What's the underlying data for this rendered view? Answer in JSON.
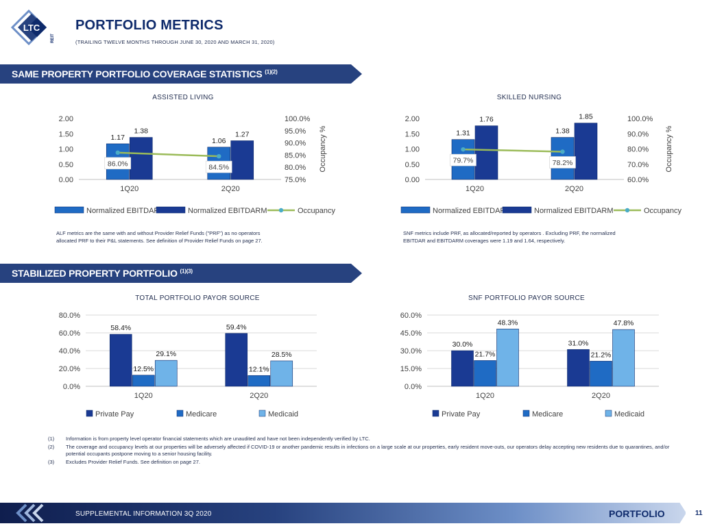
{
  "header": {
    "title": "PORTFOLIO METRICS",
    "subtitle": "(TRAILING TWELVE MONTHS THROUGH JUNE 30, 2020 AND MARCH 31, 2020)",
    "logo_text": "LTC",
    "logo_subtext": "REIT"
  },
  "banners": {
    "coverage": {
      "label": "SAME PROPERTY PORTFOLIO COVERAGE STATISTICS",
      "sup": "(1)(2)"
    },
    "stabilized": {
      "label": "STABILIZED PROPERTY PORTFOLIO",
      "sup": "(1)(3)"
    }
  },
  "notes": {
    "alf": [
      "ALF metrics are the same with and without Provider Relief Funds (\"PRF\") as no operators",
      "allocated PRF to their P&L statements. See definition of Provider Relief Funds on page 27."
    ],
    "snf": [
      "SNF metrics include PRF, as allocated/reported by operators . Excluding PRF, the normalized",
      "EBITDAR and EBITDARM coverages were 1.19 and 1.64, respectively."
    ]
  },
  "footnotes": [
    {
      "num": "(1)",
      "text": "Information is from property level operator financial statements which are unaudited and have not been independently  verified by LTC."
    },
    {
      "num": "(2)",
      "text": "The coverage and occupancy levels at our properties will be adversely affected if COVID-19 or another pandemic results in infections on a large scale at our properties, early resident move-outs, our operators delay accepting new residents due to quarantines, and/or potential occupants postpone moving to a senior housing facility."
    },
    {
      "num": "(3)",
      "text": "Excludes Provider Relief Funds. See definition on page 27."
    }
  ],
  "footer": {
    "text": "SUPPLEMENTAL INFORMATION 3Q 2020",
    "section": "PORTFOLIO",
    "page": "11"
  },
  "colors": {
    "navy": "#0e2a6b",
    "banner": "#27427f",
    "bar_dark": "#1a3a93",
    "bar_mid": "#1f6bc4",
    "bar_light": "#6fb3e8",
    "occupancy_line": "#9bbb59",
    "occupancy_marker": "#4bacc6"
  },
  "chart_data": [
    {
      "id": "assisted-living",
      "type": "bar",
      "title": "ASSISTED  LIVING",
      "categories": [
        "1Q20",
        "2Q20"
      ],
      "series": [
        {
          "name": "Normalized EBITDAR",
          "values": [
            1.17,
            1.06
          ],
          "labels": [
            "1.17",
            "1.06"
          ]
        },
        {
          "name": "Normalized EBITDARM",
          "values": [
            1.38,
            1.27
          ],
          "labels": [
            "1.38",
            "1.27"
          ]
        }
      ],
      "line": {
        "name": "Occupancy",
        "values": [
          86.0,
          84.5
        ],
        "labels": [
          "86.0%",
          "84.5%"
        ]
      },
      "ylim": [
        0,
        2
      ],
      "yticks": [
        "0.00",
        "0.50",
        "1.00",
        "1.50",
        "2.00"
      ],
      "y2lim": [
        75,
        100
      ],
      "y2ticks": [
        "75.0%",
        "80.0%",
        "85.0%",
        "90.0%",
        "95.0%",
        "100.0%"
      ],
      "y2label": "Occupancy %",
      "legend": "bottom"
    },
    {
      "id": "skilled-nursing",
      "type": "bar",
      "title": "SKILLED  NURSING",
      "categories": [
        "1Q20",
        "2Q20"
      ],
      "series": [
        {
          "name": "Normalized EBITDAR",
          "values": [
            1.31,
            1.38
          ],
          "labels": [
            "1.31",
            "1.38"
          ]
        },
        {
          "name": "Normalized EBITDARM",
          "values": [
            1.76,
            1.85
          ],
          "labels": [
            "1.76",
            "1.85"
          ]
        }
      ],
      "line": {
        "name": "Occupancy",
        "values": [
          79.7,
          78.2
        ],
        "labels": [
          "79.7%",
          "78.2%"
        ]
      },
      "ylim": [
        0,
        2
      ],
      "yticks": [
        "0.00",
        "0.50",
        "1.00",
        "1.50",
        "2.00"
      ],
      "y2lim": [
        60,
        100
      ],
      "y2ticks": [
        "60.0%",
        "70.0%",
        "80.0%",
        "90.0%",
        "100.0%"
      ],
      "y2label": "Occupancy %",
      "legend": "bottom"
    },
    {
      "id": "total-payor",
      "type": "bar",
      "title": "TOTAL PORTFOLIO PAYOR SOURCE",
      "categories": [
        "1Q20",
        "2Q20"
      ],
      "series": [
        {
          "name": "Private Pay",
          "values": [
            58.4,
            59.4
          ],
          "labels": [
            "58.4%",
            "59.4%"
          ]
        },
        {
          "name": "Medicare",
          "values": [
            12.5,
            12.1
          ],
          "labels": [
            "12.5%",
            "12.1%"
          ]
        },
        {
          "name": "Medicaid",
          "values": [
            29.1,
            28.5
          ],
          "labels": [
            "29.1%",
            "28.5%"
          ]
        }
      ],
      "ylim": [
        0,
        80
      ],
      "yticks": [
        "0.0%",
        "20.0%",
        "40.0%",
        "60.0%",
        "80.0%"
      ],
      "legend": "bottom"
    },
    {
      "id": "snf-payor",
      "type": "bar",
      "title": "SNF PORTFOLIO PAYOR SOURCE",
      "categories": [
        "1Q20",
        "2Q20"
      ],
      "series": [
        {
          "name": "Private Pay",
          "values": [
            30.0,
            31.0
          ],
          "labels": [
            "30.0%",
            "31.0%"
          ]
        },
        {
          "name": "Medicare",
          "values": [
            21.7,
            21.2
          ],
          "labels": [
            "21.7%",
            "21.2%"
          ]
        },
        {
          "name": "Medicaid",
          "values": [
            48.3,
            47.8
          ],
          "labels": [
            "48.3%",
            "47.8%"
          ]
        }
      ],
      "ylim": [
        0,
        60
      ],
      "yticks": [
        "0.0%",
        "15.0%",
        "30.0%",
        "45.0%",
        "60.0%"
      ],
      "legend": "bottom"
    }
  ]
}
